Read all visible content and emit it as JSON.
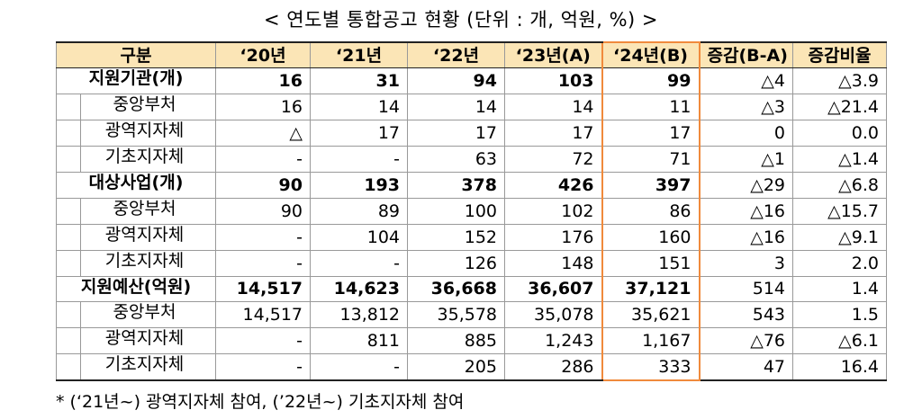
{
  "title": "< 연도별 통합공고 현황 (단위 : 개, 억원, %) >",
  "columns": [
    "구분",
    "‘20년",
    "‘21년",
    "‘22년",
    "‘23년(A)",
    "‘24년(B)",
    "증감(B-A)",
    "증감비율"
  ],
  "rows": [
    {
      "type": "group",
      "label": "지원기관(개)",
      "cells": [
        "16",
        "31",
        "94",
        "103",
        "99",
        "△4",
        "△3.9"
      ]
    },
    {
      "type": "sub",
      "label": "중앙부처",
      "cells": [
        "16",
        "14",
        "14",
        "14",
        "11",
        "△3",
        "△21.4"
      ]
    },
    {
      "type": "sub",
      "label": "광역지자체",
      "cells": [
        "△",
        "17",
        "17",
        "17",
        "17",
        "0",
        "0.0"
      ]
    },
    {
      "type": "sub",
      "label": "기초지자체",
      "cells": [
        "-",
        "-",
        "63",
        "72",
        "71",
        "△1",
        "△1.4"
      ]
    },
    {
      "type": "group",
      "label": "대상사업(개)",
      "cells": [
        "90",
        "193",
        "378",
        "426",
        "397",
        "△29",
        "△6.8"
      ]
    },
    {
      "type": "sub",
      "label": "중앙부처",
      "cells": [
        "90",
        "89",
        "100",
        "102",
        "86",
        "△16",
        "△15.7"
      ]
    },
    {
      "type": "sub",
      "label": "광역지자체",
      "cells": [
        "-",
        "104",
        "152",
        "176",
        "160",
        "△16",
        "△9.1"
      ]
    },
    {
      "type": "sub",
      "label": "기초지자체",
      "cells": [
        "-",
        "-",
        "126",
        "148",
        "151",
        "3",
        "2.0"
      ]
    },
    {
      "type": "group",
      "label": "지원예산(억원)",
      "cells": [
        "14,517",
        "14,623",
        "36,668",
        "36,607",
        "37,121",
        "514",
        "1.4"
      ]
    },
    {
      "type": "sub",
      "label": "중앙부처",
      "cells": [
        "14,517",
        "13,812",
        "35,578",
        "35,078",
        "35,621",
        "543",
        "1.5"
      ]
    },
    {
      "type": "sub",
      "label": "광역지자체",
      "cells": [
        "-",
        "811",
        "885",
        "1,243",
        "1,167",
        "△76",
        "△6.1"
      ]
    },
    {
      "type": "sub",
      "label": "기초지자체",
      "cells": [
        "-",
        "-",
        "205",
        "286",
        "333",
        "47",
        "16.4"
      ]
    }
  ],
  "footnote": "* (‘21년~) 광역지자체 참여, (’22년~) 기초지자체 참여",
  "colors": {
    "header_bg": "#fbe5b6",
    "highlight_border": "#f08a3c"
  }
}
